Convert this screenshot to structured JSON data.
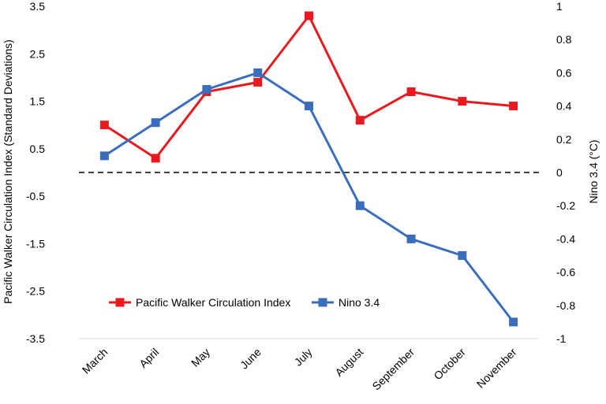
{
  "chart_data": {
    "type": "line",
    "categories": [
      "March",
      "April",
      "May",
      "June",
      "July",
      "August",
      "September",
      "October",
      "November"
    ],
    "series": [
      {
        "name": "Pacific Walker Circulation Index",
        "axis": "left",
        "color": "#e8191f",
        "values": [
          1.0,
          0.3,
          1.7,
          1.9,
          3.3,
          1.1,
          1.7,
          1.5,
          1.4
        ]
      },
      {
        "name": "Nino 3.4",
        "axis": "right",
        "color": "#3a6ebd",
        "values": [
          0.1,
          0.3,
          0.5,
          0.6,
          0.4,
          -0.2,
          -0.4,
          -0.5,
          -0.9
        ]
      }
    ],
    "ylabel": "Pacific Walker Circulation Index (Standard Deviations)",
    "y2label": "Nino 3.4 (°C)",
    "ylim": [
      -3.5,
      3.5
    ],
    "y2lim": [
      -1,
      1
    ],
    "yticks": [
      "3.5",
      "2.5",
      "1.5",
      "0.5",
      "-0.5",
      "-1.5",
      "-2.5",
      "-3.5"
    ],
    "y2ticks": [
      "1",
      "0.8",
      "0.6",
      "0.4",
      "0.2",
      "0",
      "-0.2",
      "-0.4",
      "-0.6",
      "-0.8",
      "-1"
    ],
    "zero_line": "dashed",
    "grid": false,
    "legend": "bottom-left inside"
  }
}
